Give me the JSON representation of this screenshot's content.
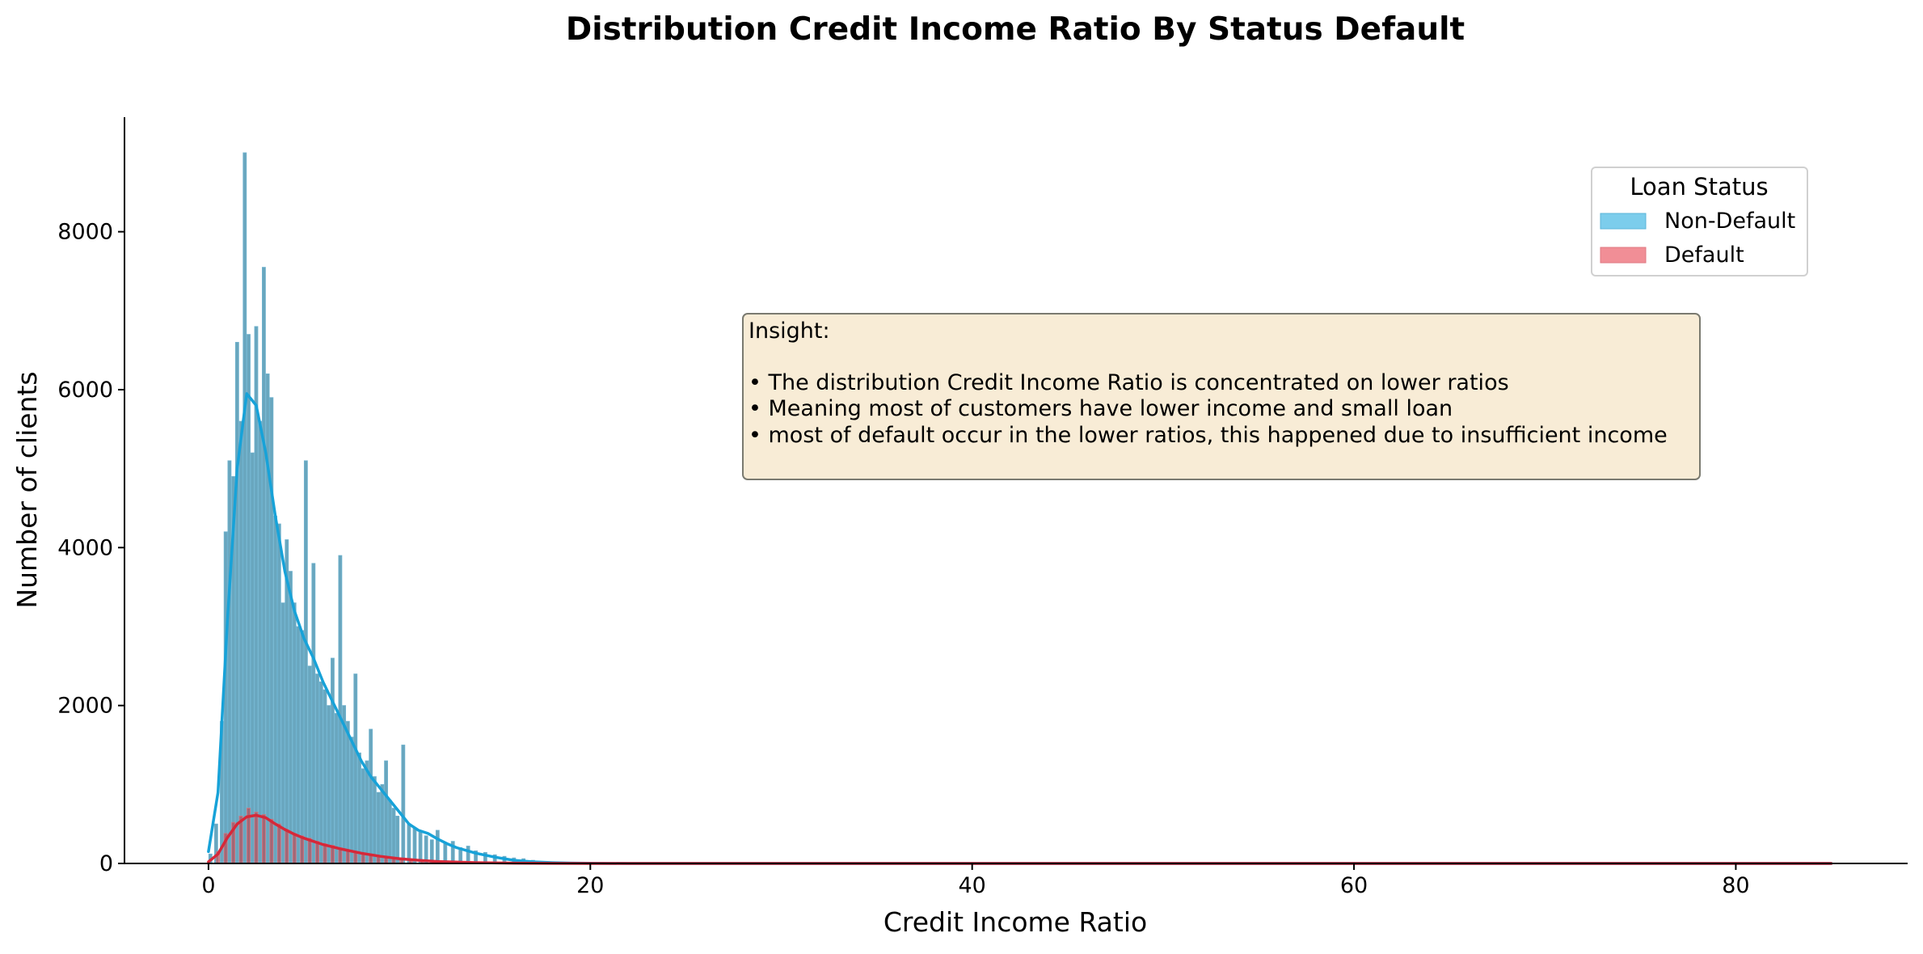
{
  "chart_data": {
    "type": "bar",
    "title": "Distribution Credit Income Ratio By Status Default",
    "xlabel": "Credit Income Ratio",
    "ylabel": "Number of clients",
    "xlim": [
      -4.4,
      89.0
    ],
    "ylim": [
      0,
      9450
    ],
    "xticks": [
      "0",
      "20",
      "40",
      "60",
      "80"
    ],
    "yticks": [
      "0",
      "2000",
      "4000",
      "6000",
      "8000"
    ],
    "bin_width": 0.17,
    "grid": false,
    "legend": {
      "title": "Loan Status",
      "placement": "upper-right",
      "entries": [
        "Non-Default",
        "Default"
      ]
    },
    "series": [
      {
        "name": "Non-Default",
        "color": "#5bc0eb",
        "kde_color": "#17a2d8",
        "kde_x": [
          0,
          0.5,
          1.0,
          1.5,
          2.0,
          2.5,
          3.0,
          3.5,
          4.0,
          4.5,
          5.0,
          5.5,
          6.0,
          6.5,
          7.0,
          7.5,
          8.0,
          8.5,
          9.0,
          9.5,
          10.0,
          10.5,
          11.0,
          11.5,
          12.0,
          12.5,
          13.0,
          14.0,
          15.0,
          16.0,
          17.0,
          18.0,
          19.0,
          20.0,
          22.0,
          25.0,
          85.0
        ],
        "kde_y": [
          150,
          900,
          3100,
          5000,
          5950,
          5800,
          5200,
          4400,
          3700,
          3200,
          2850,
          2600,
          2300,
          2050,
          1800,
          1550,
          1300,
          1100,
          950,
          800,
          650,
          500,
          420,
          380,
          310,
          250,
          200,
          130,
          80,
          40,
          20,
          10,
          5,
          2,
          0,
          0,
          0
        ],
        "hist_x": [
          0.1,
          0.4,
          0.7,
          0.9,
          1.1,
          1.3,
          1.5,
          1.7,
          1.9,
          2.1,
          2.3,
          2.5,
          2.7,
          2.9,
          3.1,
          3.3,
          3.5,
          3.7,
          3.9,
          4.1,
          4.3,
          4.5,
          4.7,
          4.9,
          5.1,
          5.3,
          5.5,
          5.7,
          5.9,
          6.1,
          6.3,
          6.5,
          6.7,
          6.9,
          7.1,
          7.3,
          7.5,
          7.7,
          7.9,
          8.1,
          8.3,
          8.5,
          8.7,
          8.9,
          9.1,
          9.3,
          9.5,
          9.7,
          9.9,
          10.2,
          10.5,
          10.8,
          11.1,
          11.4,
          11.7,
          12.0,
          12.4,
          12.8,
          13.2,
          13.6,
          14.0,
          14.5,
          15.0,
          15.5,
          16.0,
          16.5,
          17.0,
          18.0,
          19.0
        ],
        "hist_y": [
          120,
          500,
          1800,
          4200,
          5100,
          4900,
          6600,
          5600,
          9000,
          6700,
          5200,
          6800,
          5600,
          7550,
          6200,
          5900,
          4400,
          4300,
          3300,
          4100,
          3700,
          3300,
          3000,
          2950,
          5100,
          2500,
          3800,
          2400,
          2300,
          2200,
          2000,
          2600,
          1900,
          3900,
          2000,
          1800,
          1600,
          2400,
          1400,
          1200,
          1300,
          1700,
          1100,
          900,
          1000,
          1300,
          800,
          700,
          600,
          1500,
          500,
          450,
          400,
          350,
          300,
          420,
          250,
          280,
          200,
          220,
          160,
          140,
          110,
          90,
          70,
          60,
          40,
          20,
          10
        ]
      },
      {
        "name": "Default",
        "color": "#ef6f7a",
        "kde_color": "#d62839",
        "kde_x": [
          0,
          0.5,
          1.0,
          1.5,
          2.0,
          2.5,
          3.0,
          3.5,
          4.0,
          4.5,
          5.0,
          5.5,
          6.0,
          7.0,
          8.0,
          9.0,
          10.0,
          11.0,
          12.0,
          14.0,
          16.0,
          18.0,
          20.0,
          85.0
        ],
        "kde_y": [
          20,
          120,
          330,
          500,
          590,
          610,
          580,
          500,
          430,
          370,
          320,
          280,
          240,
          180,
          130,
          90,
          60,
          40,
          25,
          10,
          4,
          1,
          0,
          0
        ],
        "hist_x": [
          0.5,
          0.9,
          1.3,
          1.7,
          2.1,
          2.5,
          2.9,
          3.3,
          3.7,
          4.1,
          4.5,
          4.9,
          5.3,
          5.7,
          6.1,
          6.5,
          6.9,
          7.3,
          7.7,
          8.1,
          8.5,
          8.9,
          9.3,
          9.7,
          10.1,
          10.6,
          11.2,
          12.0
        ],
        "hist_y": [
          150,
          380,
          520,
          600,
          700,
          650,
          620,
          560,
          500,
          430,
          380,
          350,
          320,
          280,
          250,
          230,
          200,
          170,
          150,
          130,
          110,
          90,
          75,
          60,
          50,
          40,
          30,
          20
        ]
      }
    ],
    "annotation": {
      "title": "Insight:",
      "lines": [
        "• The distribution Credit Income Ratio is concentrated on lower ratios",
        "• Meaning most of customers have lower income and small loan",
        "• most of default occur in the lower ratios, this happened due to insufficient income"
      ]
    }
  }
}
